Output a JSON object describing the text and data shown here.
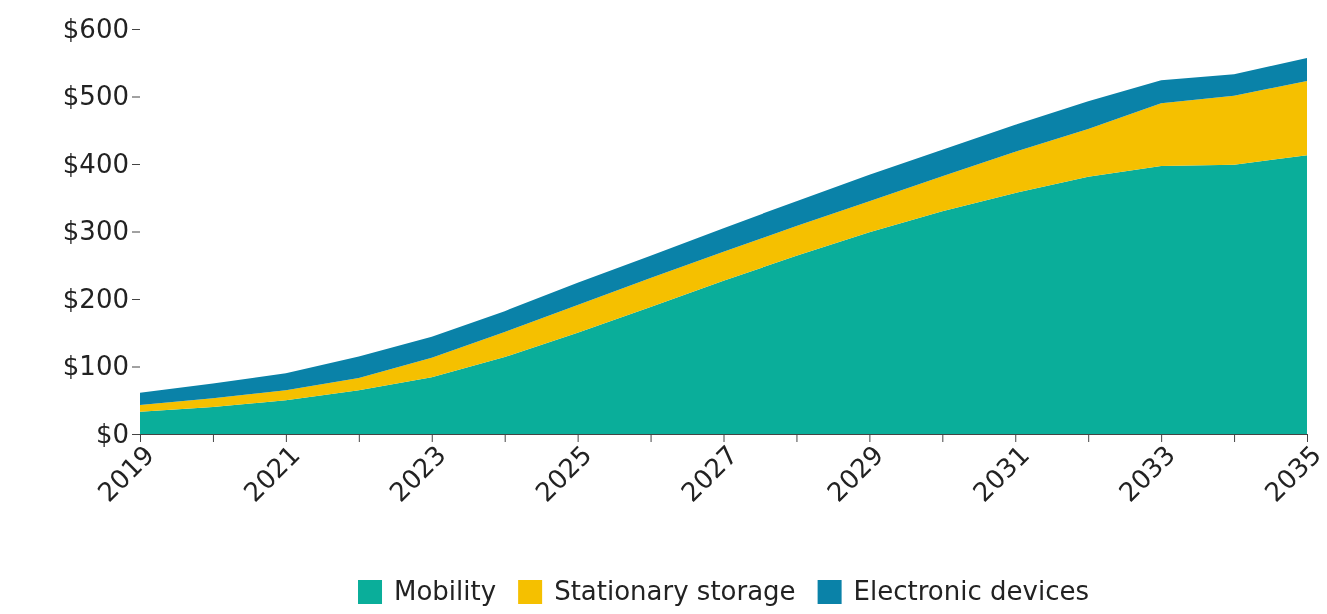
{
  "chart_data": {
    "type": "area",
    "stacked": true,
    "x": [
      2019,
      2020,
      2021,
      2022,
      2023,
      2024,
      2025,
      2026,
      2027,
      2028,
      2029,
      2030,
      2031,
      2032,
      2033,
      2034,
      2035
    ],
    "series": [
      {
        "name": "Mobility",
        "color": "#0aae9a",
        "values": [
          33,
          40,
          50,
          65,
          84,
          114,
          150,
          188,
          227,
          264,
          299,
          330,
          357,
          381,
          397,
          399,
          413
        ]
      },
      {
        "name": "Stationary storage",
        "color": "#f5c000",
        "values": [
          10,
          13,
          15,
          18,
          29,
          37,
          41,
          43,
          43,
          44,
          46,
          52,
          61,
          71,
          93,
          102,
          110
        ]
      },
      {
        "name": "Electronic devices",
        "color": "#0a82a8",
        "values": [
          18,
          22,
          25,
          32,
          31,
          31,
          33,
          33,
          35,
          37,
          39,
          39,
          40,
          41,
          34,
          32,
          34
        ]
      }
    ],
    "xlim": [
      2019,
      2035
    ],
    "xticks": [
      2019,
      {
        "value": 2020,
        "label": null
      },
      2021,
      {
        "value": 2022,
        "label": null
      },
      2023,
      {
        "value": 2024,
        "label": null
      },
      2025,
      {
        "value": 2026,
        "label": null
      },
      2027,
      {
        "value": 2028,
        "label": null
      },
      2029,
      {
        "value": 2030,
        "label": null
      },
      2031,
      {
        "value": 2032,
        "label": null
      },
      2033,
      {
        "value": 2034,
        "label": null
      },
      2035
    ],
    "ylim": [
      0,
      600
    ],
    "yticks": [
      {
        "value": 0,
        "label": "$0"
      },
      {
        "value": 100,
        "label": "$100"
      },
      {
        "value": 200,
        "label": "$200"
      },
      {
        "value": 300,
        "label": "$300"
      },
      {
        "value": 400,
        "label": "$400"
      },
      {
        "value": 500,
        "label": "$500"
      },
      {
        "value": 600,
        "label": "$600"
      }
    ],
    "legend": "bottom"
  }
}
